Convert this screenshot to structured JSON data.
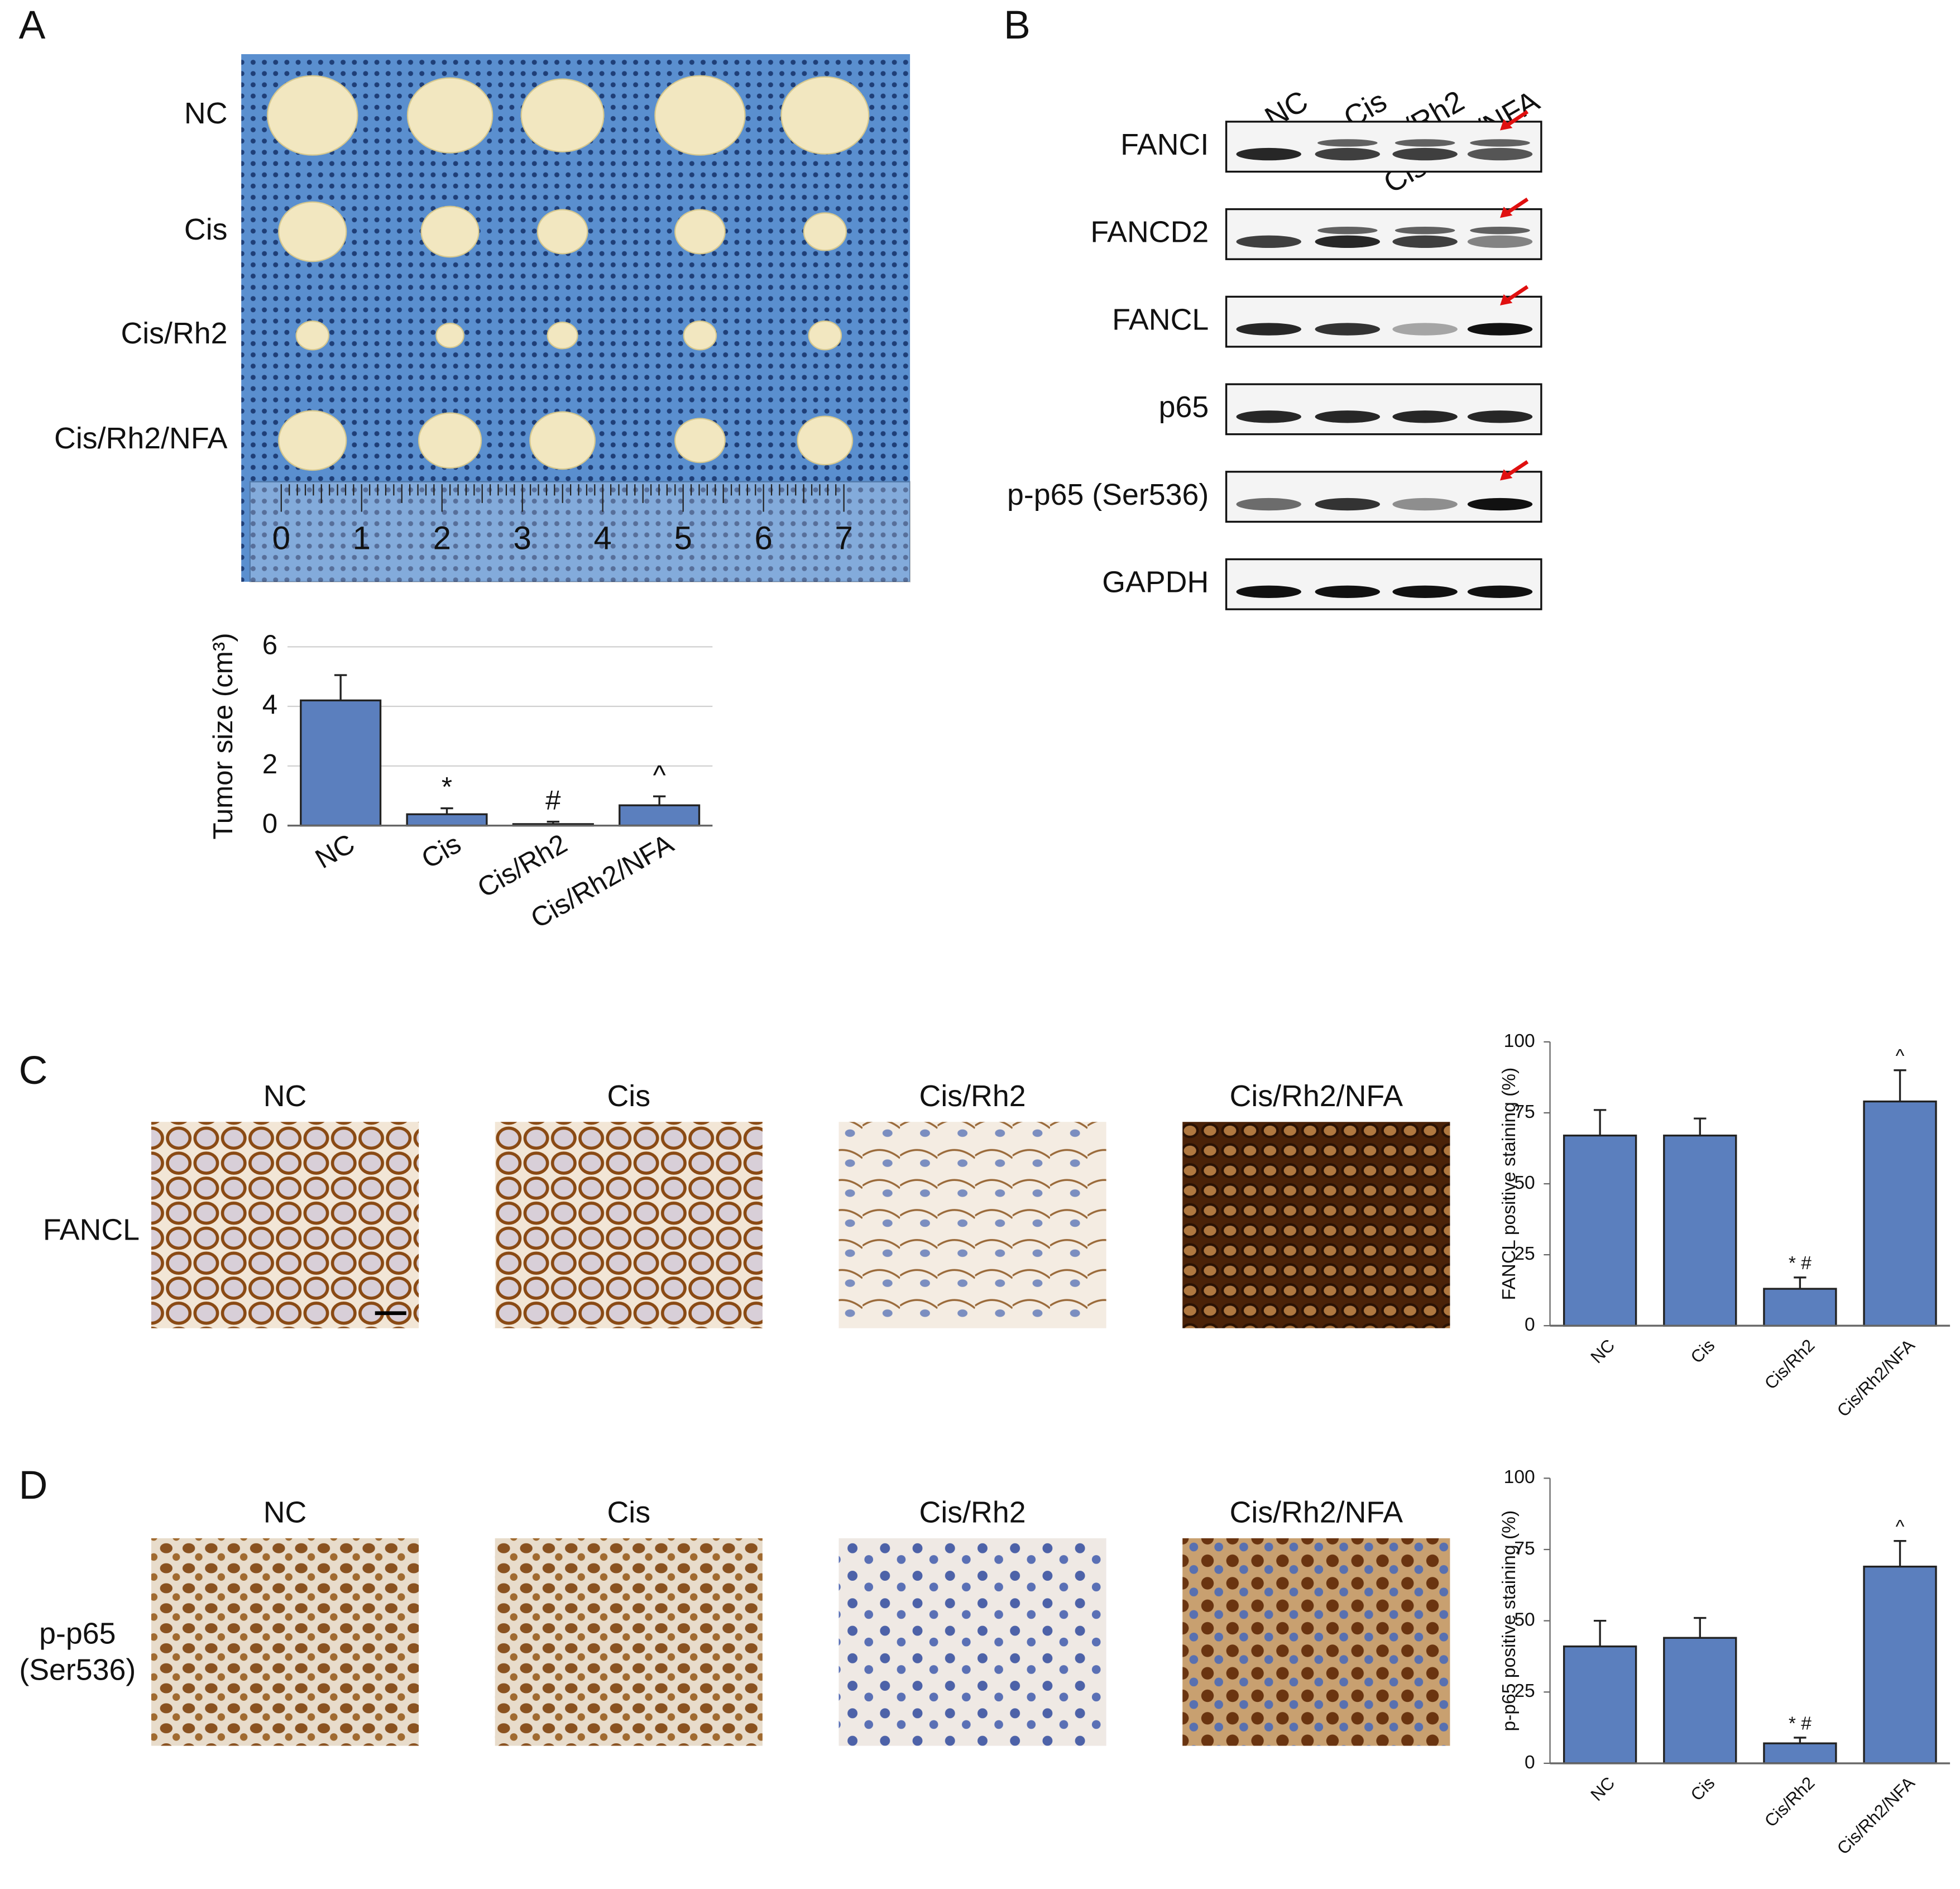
{
  "panel_labels": [
    "A",
    "B",
    "C",
    "D"
  ],
  "tumor_photo": {
    "row_labels": [
      "NC",
      "Cis",
      "Cis/Rh2",
      "Cis/Rh2/NFA"
    ],
    "ruler_labels": [
      0,
      1,
      2,
      3,
      4,
      5,
      6,
      7
    ]
  },
  "western_blot": {
    "lane_labels": [
      "NC",
      "Cis",
      "Cis/Rh2",
      "Cis/Rh2/NFA"
    ],
    "proteins": [
      "FANCI",
      "FANCD2",
      "FANCL",
      "p65",
      "p-p65 (Ser536)",
      "GAPDH"
    ]
  },
  "ihc": {
    "column_labels_c": [
      "NC",
      "Cis",
      "Cis/Rh2",
      "Cis/Rh2/NFA"
    ],
    "column_labels_d": [
      "NC",
      "Cis",
      "Cis/Rh2",
      "Cis/Rh2/NFA"
    ],
    "row_label_c": "FANCL",
    "row_label_d": [
      "p-p65",
      "(Ser536)"
    ]
  },
  "chart_data": [
    {
      "type": "bar",
      "y_label": "Tumor size (cm³)",
      "categories": [
        "NC",
        "Cis",
        "Cis/Rh2",
        "Cis/Rh2/NFA"
      ],
      "values": [
        4.2,
        0.38,
        0.05,
        0.68
      ],
      "errors": [
        0.85,
        0.2,
        0.08,
        0.3
      ],
      "annotations": [
        null,
        "*",
        "#",
        "^"
      ],
      "color": "#5b7fbe",
      "ylim": [
        0,
        6
      ],
      "yticks": [
        0,
        2,
        4,
        6
      ],
      "grid": true
    },
    {
      "type": "bar",
      "y_label": "FANCL positive staining (%)",
      "categories": [
        "NC",
        "Cis",
        "Cis/Rh2",
        "Cis/Rh2/NFA"
      ],
      "values": [
        67,
        67,
        13,
        79
      ],
      "errors": [
        9,
        6,
        4,
        11
      ],
      "annotations": [
        null,
        null,
        "* #",
        "^"
      ],
      "color": "#5b7fbe",
      "ylim": [
        0,
        100
      ],
      "yticks": [
        0,
        25,
        50,
        75,
        100
      ],
      "grid": false
    },
    {
      "type": "bar",
      "y_label": "p-p65 positive staining (%)",
      "categories": [
        "NC",
        "Cis",
        "Cis/Rh2",
        "Cis/Rh2/NFA"
      ],
      "values": [
        41,
        44,
        7,
        69
      ],
      "errors": [
        9,
        7,
        2,
        9
      ],
      "annotations": [
        null,
        null,
        "* #",
        "^"
      ],
      "color": "#5b7fbe",
      "ylim": [
        0,
        100
      ],
      "yticks": [
        0,
        25,
        50,
        75,
        100
      ],
      "grid": false
    }
  ]
}
